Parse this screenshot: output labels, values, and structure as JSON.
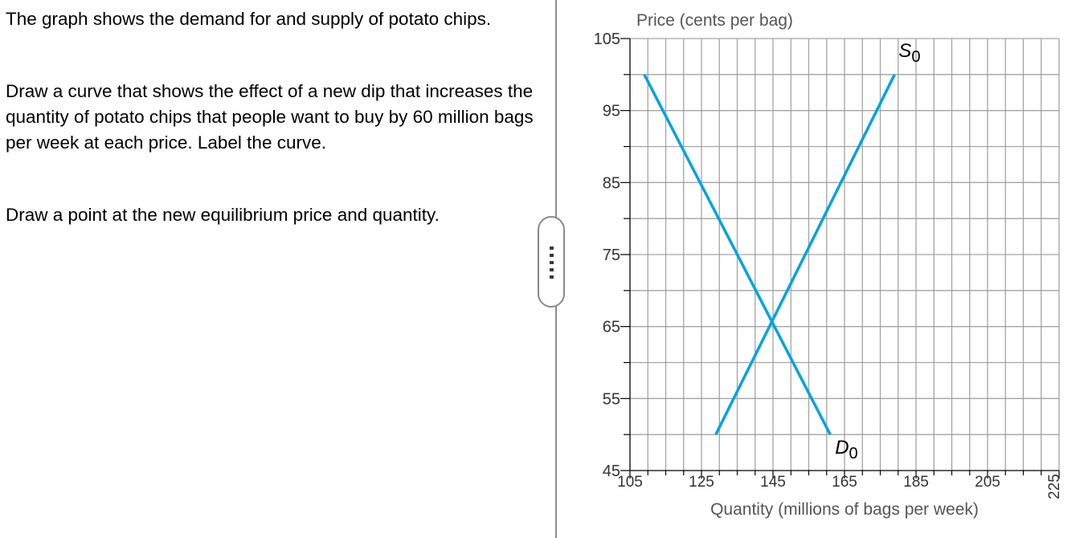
{
  "question": {
    "intro": "The graph shows the demand for and supply of potato chips.",
    "instruction_curve": "Draw a curve that shows the effect of a new dip that increases the quantity of potato chips that people want to buy by 60 million bags per week at each price. Label the curve.",
    "instruction_point": "Draw a point at the new equilibrium price and quantity."
  },
  "chart_data": {
    "type": "line",
    "ylabel": "Price (cents per bag)",
    "xlabel": "Quantity (millions of bags per week)",
    "xlim": [
      105,
      225
    ],
    "ylim": [
      45,
      105
    ],
    "x_ticks": [
      105,
      125,
      145,
      165,
      185,
      205,
      225
    ],
    "y_ticks": [
      45,
      55,
      65,
      75,
      85,
      95,
      105
    ],
    "grid": true,
    "series": [
      {
        "name": "D",
        "subscript": "0",
        "color": "#00a3e0",
        "points": [
          [
            109,
            100
          ],
          [
            161,
            50
          ]
        ]
      },
      {
        "name": "S",
        "subscript": "0",
        "color": "#00a3e0",
        "points": [
          [
            129,
            50
          ],
          [
            179,
            100
          ]
        ]
      }
    ]
  }
}
